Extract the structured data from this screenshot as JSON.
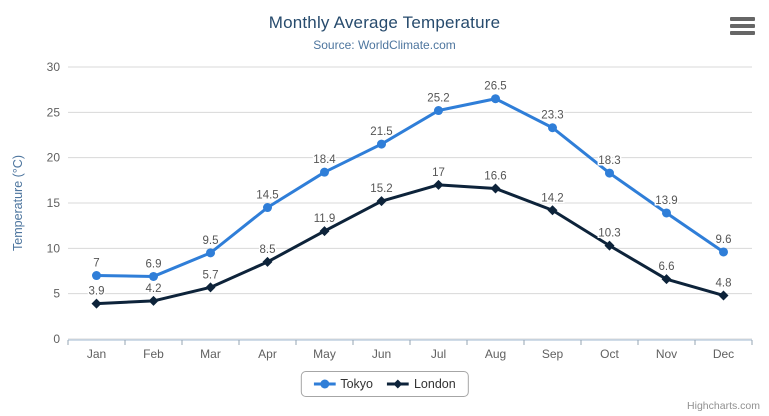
{
  "chart_data": {
    "type": "line",
    "title": "Monthly Average Temperature",
    "subtitle": "Source: WorldClimate.com",
    "categories": [
      "Jan",
      "Feb",
      "Mar",
      "Apr",
      "May",
      "Jun",
      "Jul",
      "Aug",
      "Sep",
      "Oct",
      "Nov",
      "Dec"
    ],
    "series": [
      {
        "name": "Tokyo",
        "color": "#2f7ed8",
        "marker": "circle",
        "values": [
          7,
          6.9,
          9.5,
          14.5,
          18.4,
          21.5,
          25.2,
          26.5,
          23.3,
          18.3,
          13.9,
          9.6
        ]
      },
      {
        "name": "London",
        "color": "#0d233a",
        "marker": "diamond",
        "values": [
          3.9,
          4.2,
          5.7,
          8.5,
          11.9,
          15.2,
          17,
          16.6,
          14.2,
          10.3,
          6.6,
          4.8
        ]
      }
    ],
    "xlabel": "",
    "ylabel": "Temperature (°C)",
    "ylim": [
      0,
      30
    ],
    "yticks": [
      0,
      5,
      10,
      15,
      20,
      25,
      30
    ],
    "grid": true,
    "legend_position": "bottom",
    "data_labels": true
  },
  "colors": {
    "title_text": "#274b6d",
    "subtitle_text": "#4d759e",
    "axis_title_text": "#4d759e",
    "axis_label_text": "#606060",
    "data_label_text": "#555555",
    "gridline": "#d8d8d8",
    "x_axis_line": "#c0d0e0",
    "tick_mark": "#94a5b3",
    "legend_text": "#333333",
    "menu_icon": "#666666",
    "credits_text": "#909090"
  },
  "credits": {
    "label": "Highcharts.com"
  }
}
